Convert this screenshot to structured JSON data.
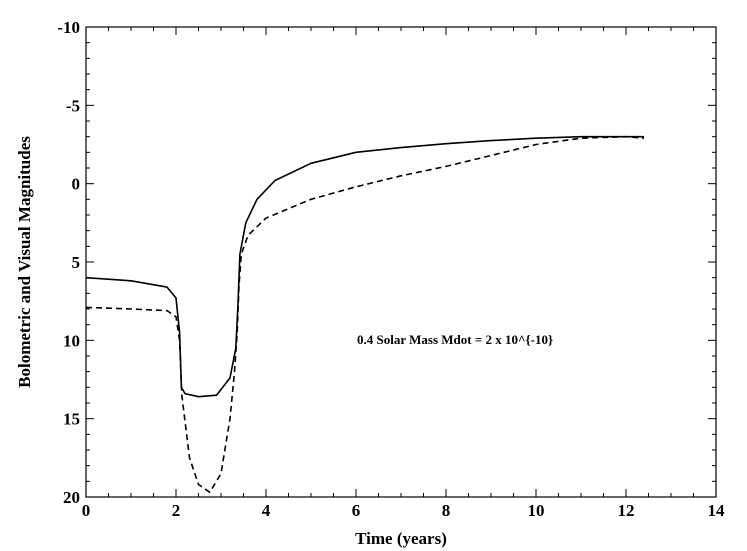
{
  "chart_data": {
    "type": "line",
    "xlabel": "Time (years)",
    "ylabel": "Bolometric and Visual Magnitudes",
    "xlim": [
      0,
      14
    ],
    "ylim": [
      -10,
      20
    ],
    "y_inverted": true,
    "x_ticks": [
      0,
      2,
      4,
      6,
      8,
      10,
      12,
      14
    ],
    "x_tick_labels": [
      "0",
      "2",
      "4",
      "6",
      "8",
      "10",
      "12",
      "14"
    ],
    "y_ticks": [
      -10,
      -5,
      0,
      5,
      10,
      15,
      20
    ],
    "y_tick_labels": [
      "-10",
      "-5",
      "0",
      "5",
      "10",
      "15",
      "20"
    ],
    "grid": false,
    "annotation": "0.4 Solar Mass Mdot = 2 x 10^{-10}",
    "series": [
      {
        "style": "solid",
        "x": [
          0,
          1.0,
          1.8,
          2.0,
          2.08,
          2.12,
          2.2,
          2.5,
          2.9,
          3.2,
          3.33,
          3.38,
          3.42,
          3.55,
          3.8,
          4.2,
          5.0,
          6.0,
          7.0,
          8.0,
          9.0,
          10.0,
          11.0,
          12.0,
          12.4
        ],
        "y": [
          6.0,
          6.2,
          6.6,
          7.3,
          9.5,
          13.0,
          13.4,
          13.6,
          13.5,
          12.4,
          10.5,
          7.5,
          4.5,
          2.5,
          1.0,
          -0.2,
          -1.3,
          -2.0,
          -2.3,
          -2.55,
          -2.75,
          -2.9,
          -3.0,
          -3.0,
          -3.0
        ]
      },
      {
        "style": "dashed",
        "x": [
          0,
          1.0,
          1.8,
          2.0,
          2.08,
          2.13,
          2.3,
          2.5,
          2.75,
          3.0,
          3.2,
          3.3,
          3.36,
          3.4,
          3.45,
          3.6,
          4.0,
          5.0,
          6.0,
          7.0,
          8.0,
          9.0,
          10.0,
          11.0,
          12.0,
          12.4
        ],
        "y": [
          7.9,
          8.0,
          8.1,
          8.5,
          10.0,
          13.5,
          17.5,
          19.2,
          19.7,
          18.5,
          15.0,
          12.0,
          9.5,
          6.5,
          4.5,
          3.3,
          2.2,
          1.0,
          0.2,
          -0.5,
          -1.1,
          -1.8,
          -2.5,
          -2.9,
          -3.0,
          -2.9
        ]
      }
    ]
  }
}
